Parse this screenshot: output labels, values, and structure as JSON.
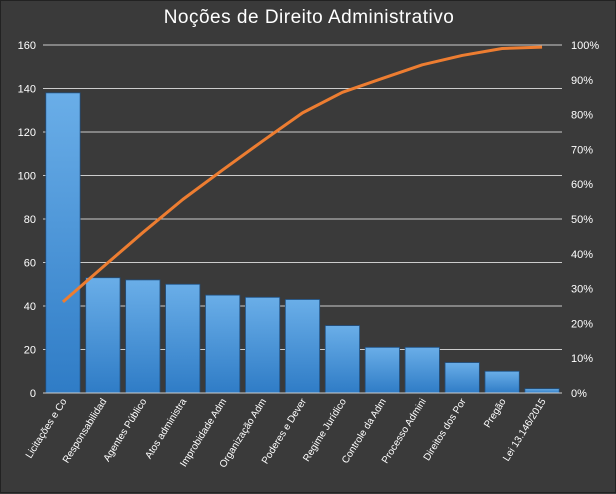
{
  "chart_data": {
    "type": "bar",
    "title": "Noções de Direito Administrativo",
    "categories": [
      "Licitações e Co",
      "Responsabilidad",
      "Agentes Público",
      "Atos administra",
      "Improbidade Adm",
      "Organização Adm",
      "Poderes e Dever",
      "Regime Jurídico",
      "Controle da Adm",
      "Processo Admini",
      "Direitos dos Por",
      "Pregão",
      "Lei 13.146/2015"
    ],
    "series": [
      {
        "type": "bar",
        "color": "#3f8ed6",
        "axis": "left",
        "values": [
          138,
          53,
          52,
          50,
          45,
          44,
          43,
          31,
          21,
          21,
          14,
          10,
          2
        ]
      },
      {
        "type": "line",
        "color": "#ed7d31",
        "axis": "right",
        "values": [
          26.2,
          36.2,
          46.1,
          55.6,
          64.1,
          72.4,
          80.5,
          86.4,
          90.4,
          94.3,
          97.0,
          99.0,
          99.4
        ]
      }
    ],
    "ylim": [
      0,
      160
    ],
    "y_ticks": [
      "0",
      "20",
      "40",
      "60",
      "80",
      "100",
      "120",
      "140",
      "160"
    ],
    "y2lim": [
      0,
      100
    ],
    "y2_ticks": [
      "0%",
      "10%",
      "20%",
      "30%",
      "40%",
      "50%",
      "60%",
      "70%",
      "80%",
      "90%",
      "100%"
    ],
    "grid": true,
    "legend": "none",
    "colors": {
      "background": "#3a3a3a",
      "grid": "#e6e6e6",
      "bar": "#3f8ed6",
      "line": "#ed7d31",
      "text": "#ffffff"
    }
  }
}
